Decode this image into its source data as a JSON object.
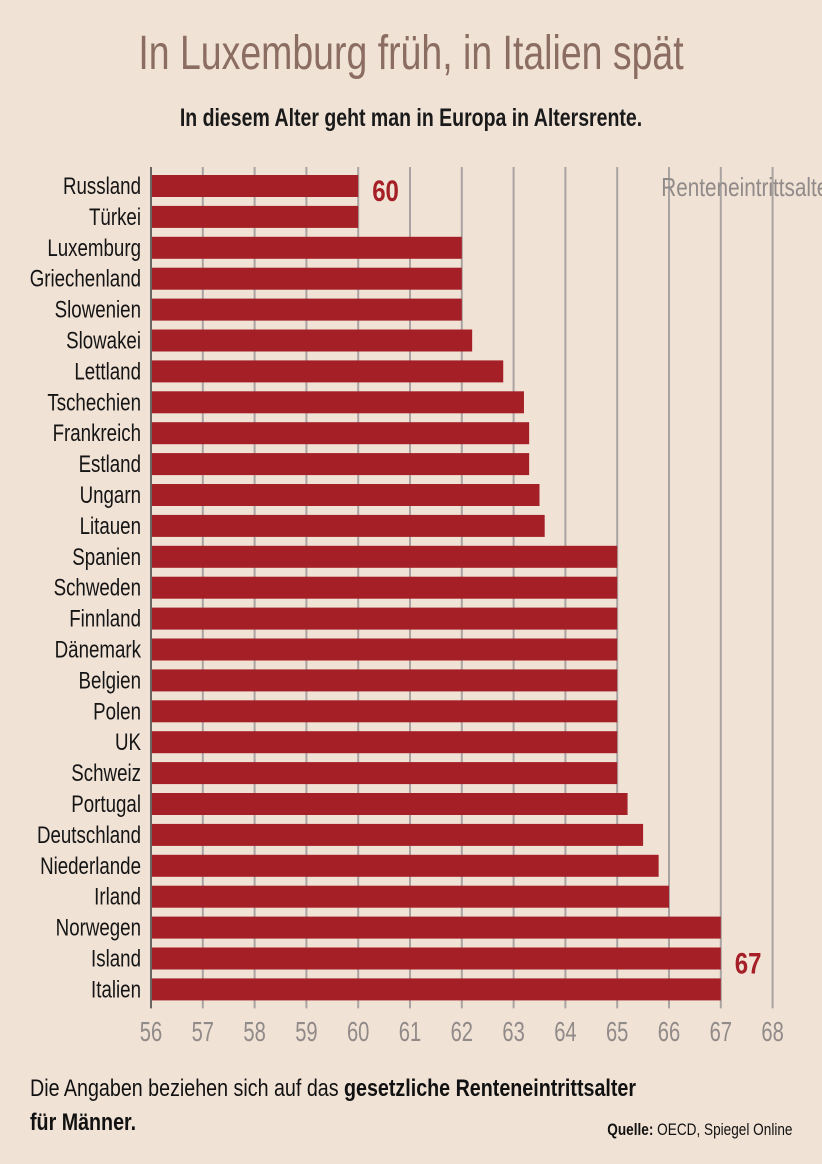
{
  "title": "In Luxemburg früh, in Italien spät",
  "subtitle": "In diesem Alter geht man in Europa in Altersrente.",
  "note": {
    "prefix": "Die Angaben beziehen sich auf das ",
    "bold": "gesetzliche Renteneintrittsalter für Männer."
  },
  "source": {
    "label": "Quelle:",
    "text": " OECD, Spiegel Online"
  },
  "colors": {
    "bar": "#a51f27",
    "grid": "#a9a3a1",
    "background": "#f1e2d6",
    "title": "#8c6d62",
    "axis_label": "#908a88"
  },
  "chart_data": {
    "type": "bar",
    "orientation": "horizontal",
    "categories": [
      "Russland",
      "Türkei",
      "Luxemburg",
      "Griechenland",
      "Slowenien",
      "Slowakei",
      "Lettland",
      "Tschechien",
      "Frankreich",
      "Estland",
      "Ungarn",
      "Litauen",
      "Spanien",
      "Schweden",
      "Finnland",
      "Dänemark",
      "Belgien",
      "Polen",
      "UK",
      "Schweiz",
      "Portugal",
      "Deutschland",
      "Niederlande",
      "Irland",
      "Norwegen",
      "Island",
      "Italien"
    ],
    "values": [
      60,
      60,
      62,
      62,
      62,
      62.2,
      62.8,
      63.2,
      63.3,
      63.3,
      63.5,
      63.6,
      65,
      65,
      65,
      65,
      65,
      65,
      65,
      65,
      65.2,
      65.5,
      65.8,
      66,
      67,
      67,
      67
    ],
    "series_label": "Renteneintrittsalter",
    "xlim": [
      56,
      68
    ],
    "xticks": [
      56,
      57,
      58,
      59,
      60,
      61,
      62,
      63,
      64,
      65,
      66,
      67,
      68
    ],
    "grid": true,
    "annotations": [
      {
        "text": "60",
        "category": "Russland",
        "value": 60
      },
      {
        "text": "67",
        "category": "Island",
        "value": 67
      }
    ]
  }
}
